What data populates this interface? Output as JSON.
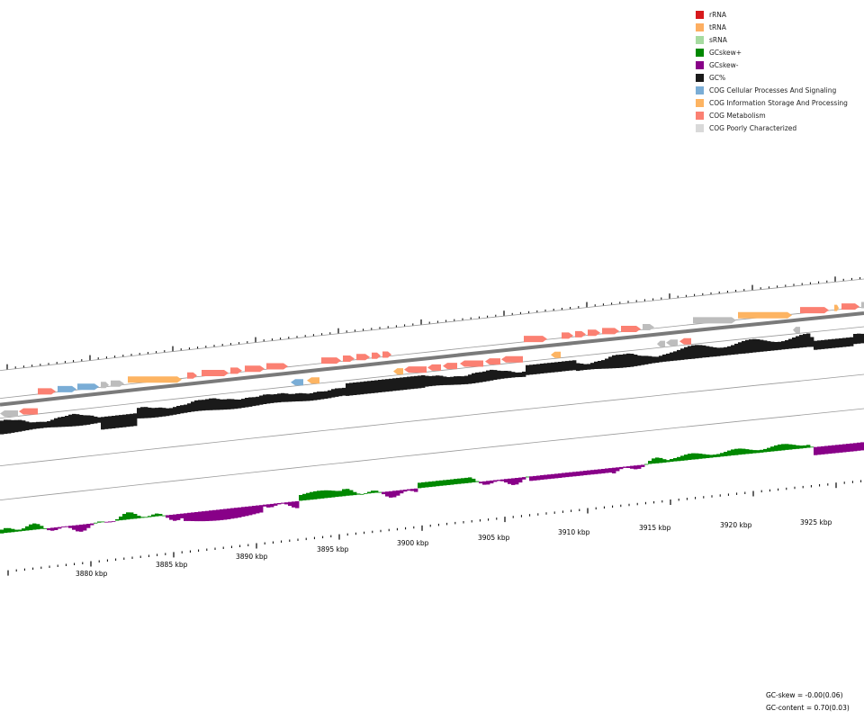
{
  "legend": [
    {
      "label": "rRNA",
      "color": "#d7191c"
    },
    {
      "label": "tRNA",
      "color": "#fdae61"
    },
    {
      "label": "sRNA",
      "color": "#a6dba0"
    },
    {
      "label": "GCskew+",
      "color": "#008800"
    },
    {
      "label": "GCskew-",
      "color": "#880088"
    },
    {
      "label": "GC%",
      "color": "#1a1a1a"
    },
    {
      "label": "COG Cellular Processes And Signaling",
      "color": "#7aadd6"
    },
    {
      "label": "COG Information Storage And Processing",
      "color": "#fdb462"
    },
    {
      "label": "COG Metabolism",
      "color": "#fb8072"
    },
    {
      "label": "COG Poorly Characterized",
      "color": "#d9d9d9"
    }
  ],
  "stats": {
    "gc_skew": "GC-skew = -0.00(0.06)",
    "gc_content": "GC-content = 0.70(0.03)"
  },
  "axis_labels": [
    "3880 kbp",
    "3885 kbp",
    "3890 kbp",
    "3895 kbp",
    "3900 kbp",
    "3905 kbp",
    "3910 kbp",
    "3915 kbp",
    "3920 kbp",
    "3925 kbp"
  ]
}
